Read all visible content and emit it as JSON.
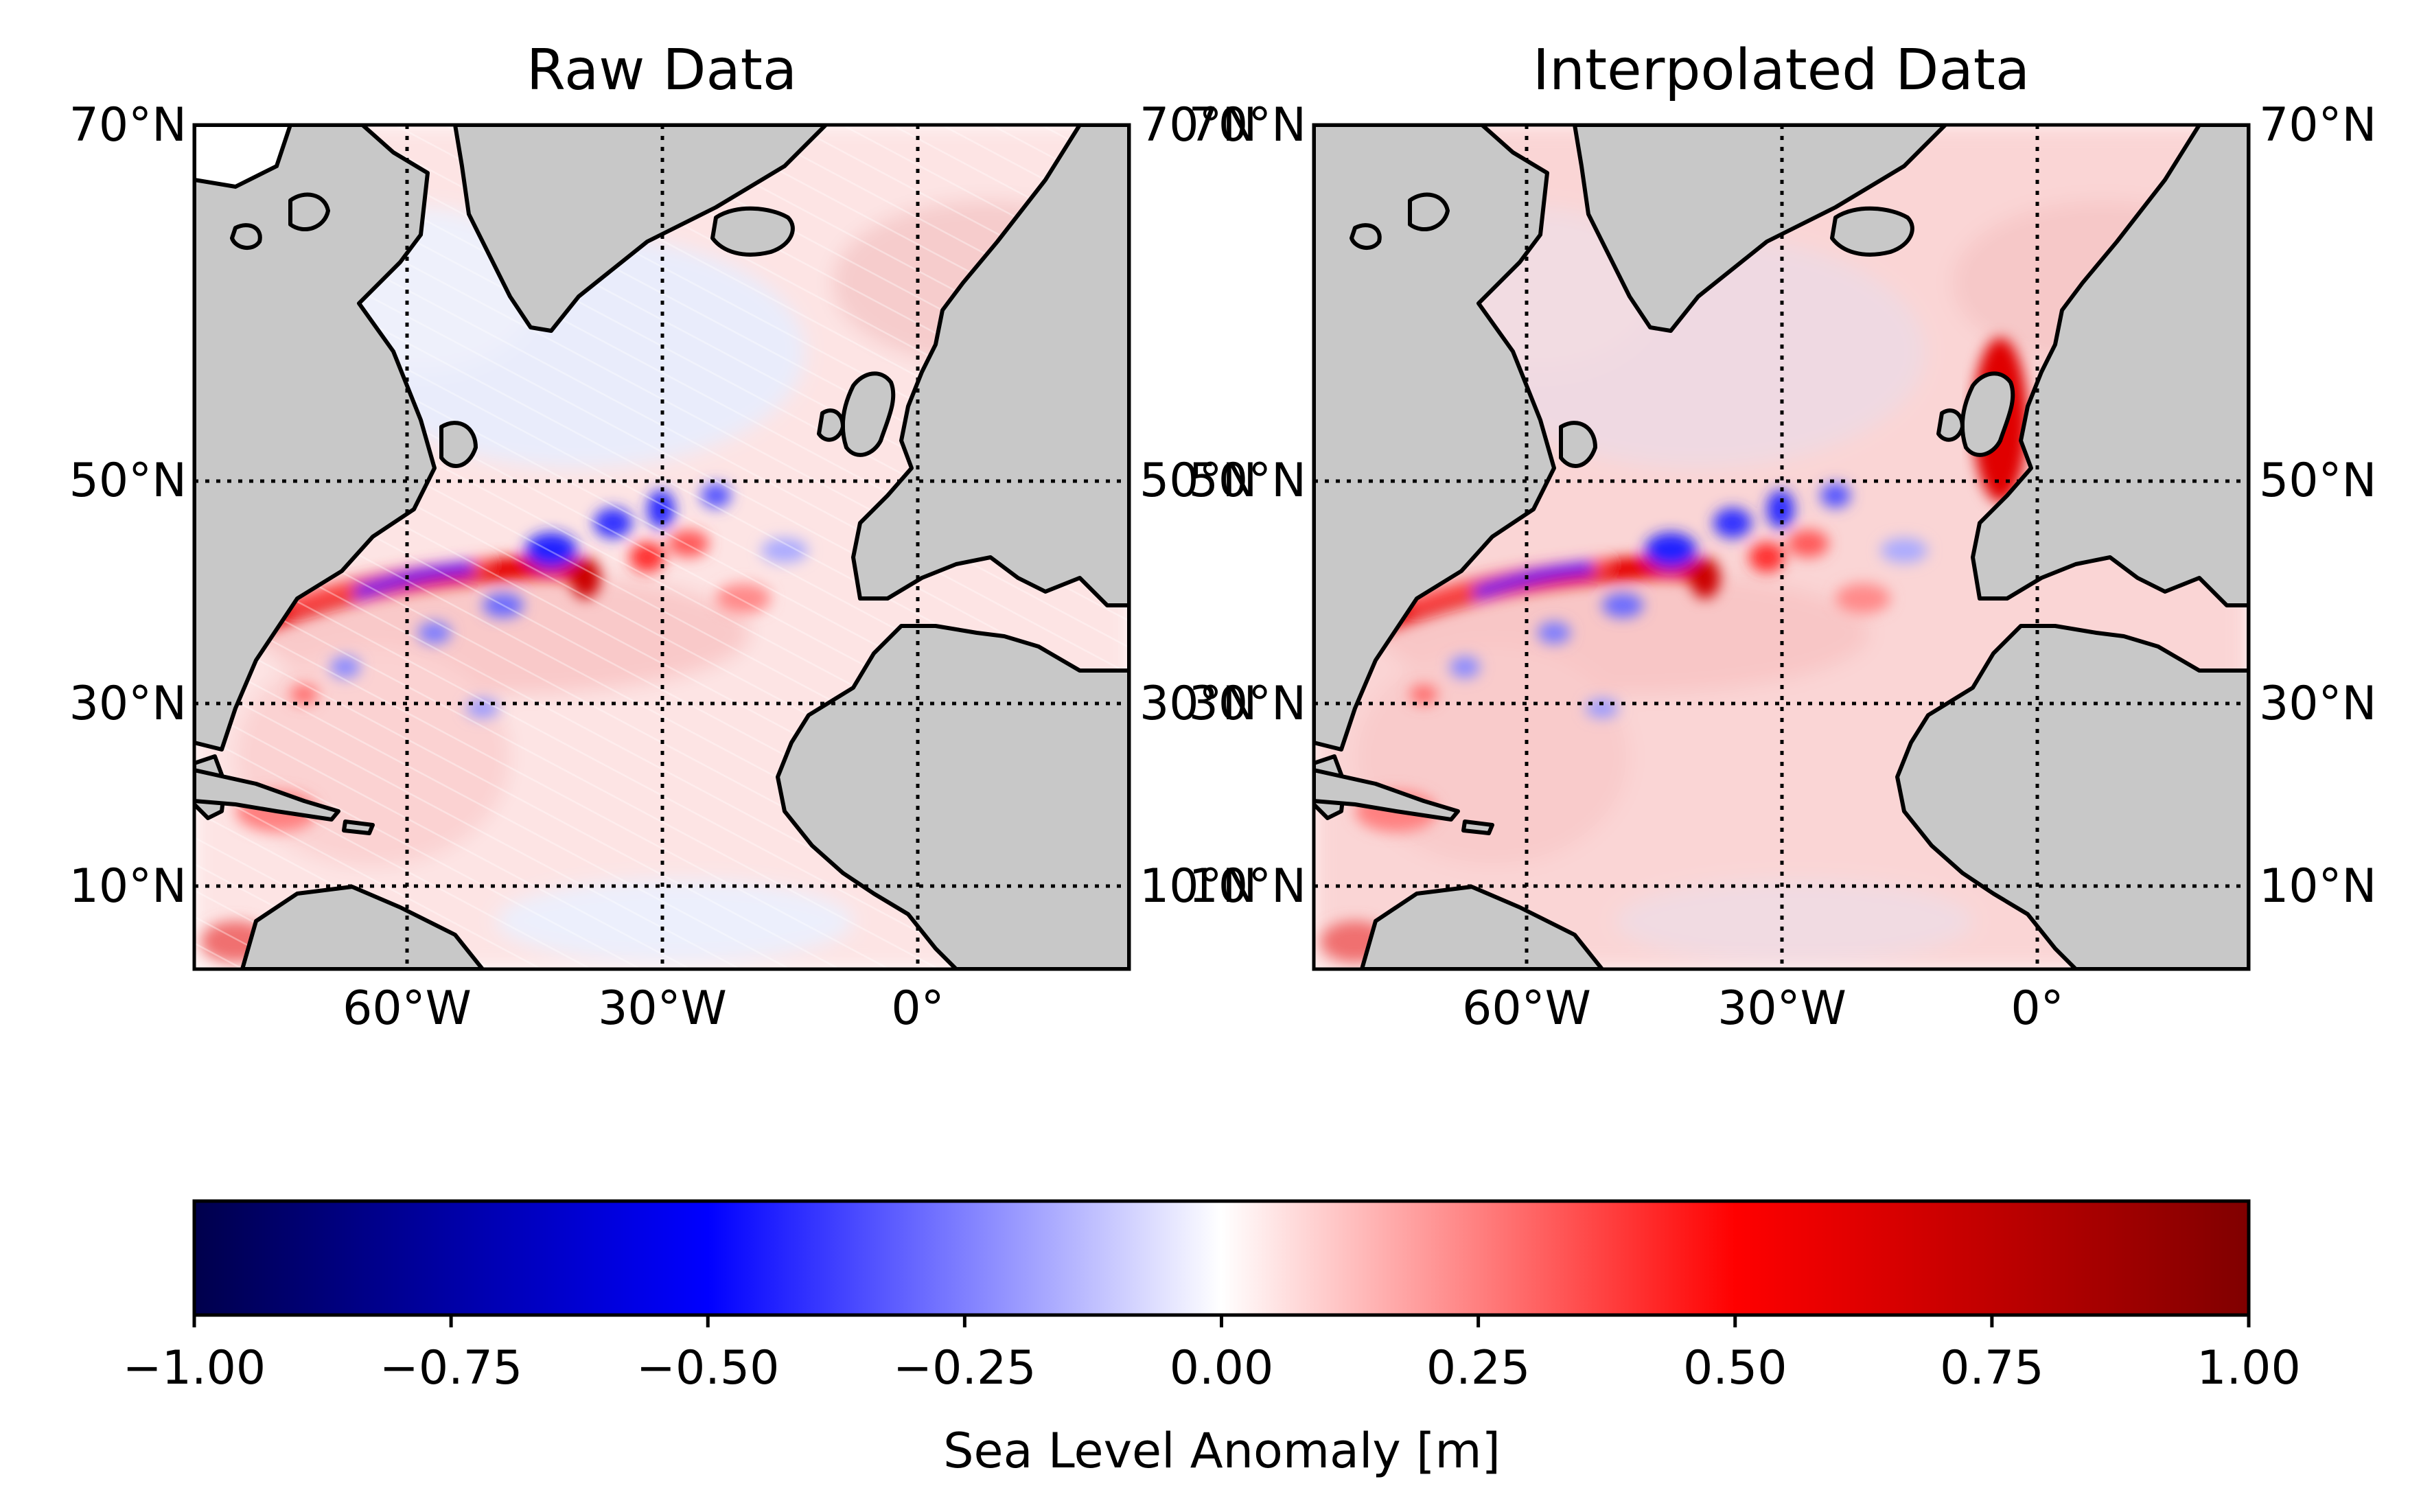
{
  "panels": [
    {
      "title": "Raw Data",
      "lat_labels_left": [
        "70°N",
        "50°N",
        "30°N",
        "10°N"
      ],
      "lat_labels_right": [
        "70°N",
        "50°N",
        "30°N",
        "10°N"
      ],
      "lon_labels": [
        "60°W",
        "30°W",
        "0°"
      ]
    },
    {
      "title": "Interpolated Data",
      "lat_labels_left": [
        "70°N",
        "50°N",
        "30°N",
        "10°N"
      ],
      "lat_labels_right": [
        "70°N",
        "50°N",
        "30°N",
        "10°N"
      ],
      "lon_labels": [
        "60°W",
        "30°W",
        "0°"
      ]
    }
  ],
  "colorbar": {
    "label": "Sea Level Anomaly [m]",
    "ticks": [
      "−1.00",
      "−0.75",
      "−0.50",
      "−0.25",
      "0.00",
      "0.25",
      "0.50",
      "0.75",
      "1.00"
    ],
    "range": [
      -1.0,
      1.0
    ],
    "colormap": "seismic",
    "colors": [
      "#00004c",
      "#0000ff",
      "#ffffff",
      "#ff0000",
      "#800000"
    ]
  },
  "map": {
    "region": "North Atlantic",
    "lon_range": [
      -85,
      25
    ],
    "lat_range": [
      2,
      70
    ],
    "gridlines": true,
    "land_color": "#c8c8c8",
    "coastline_color": "#000000"
  }
}
